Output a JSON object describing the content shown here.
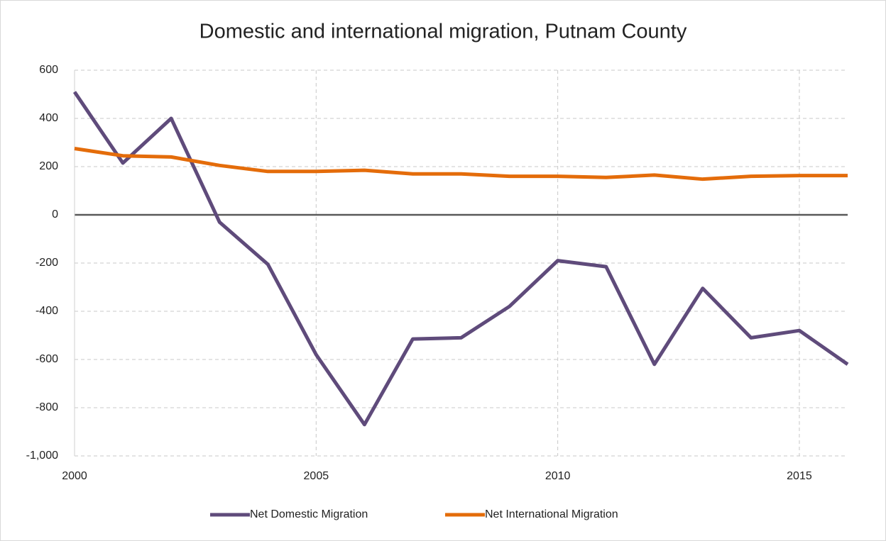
{
  "chart_data": {
    "type": "line",
    "title": "Domestic and international migration, Putnam County",
    "x": [
      2000,
      2001,
      2002,
      2003,
      2004,
      2005,
      2006,
      2007,
      2008,
      2009,
      2010,
      2011,
      2012,
      2013,
      2014,
      2015,
      2016
    ],
    "series": [
      {
        "name": "Net Domestic Migration",
        "color": "#5f4b7b",
        "values": [
          510,
          215,
          400,
          -30,
          -205,
          -580,
          -870,
          -515,
          -510,
          -380,
          -190,
          -215,
          -620,
          -305,
          -510,
          -480,
          -620
        ]
      },
      {
        "name": "Net International Migration",
        "color": "#e46c0a",
        "values": [
          275,
          245,
          240,
          205,
          180,
          180,
          185,
          170,
          170,
          160,
          160,
          155,
          165,
          148,
          160,
          163,
          163
        ]
      }
    ],
    "xlim": [
      2000,
      2016
    ],
    "xticks": [
      2000,
      2005,
      2010,
      2015
    ],
    "ylim": [
      -1000,
      600
    ],
    "yticks": [
      {
        "value": -1000,
        "label": "-1,000"
      },
      -800,
      -600,
      -400,
      -200,
      0,
      200,
      400,
      600
    ],
    "grid": true,
    "legend": "bottom"
  }
}
